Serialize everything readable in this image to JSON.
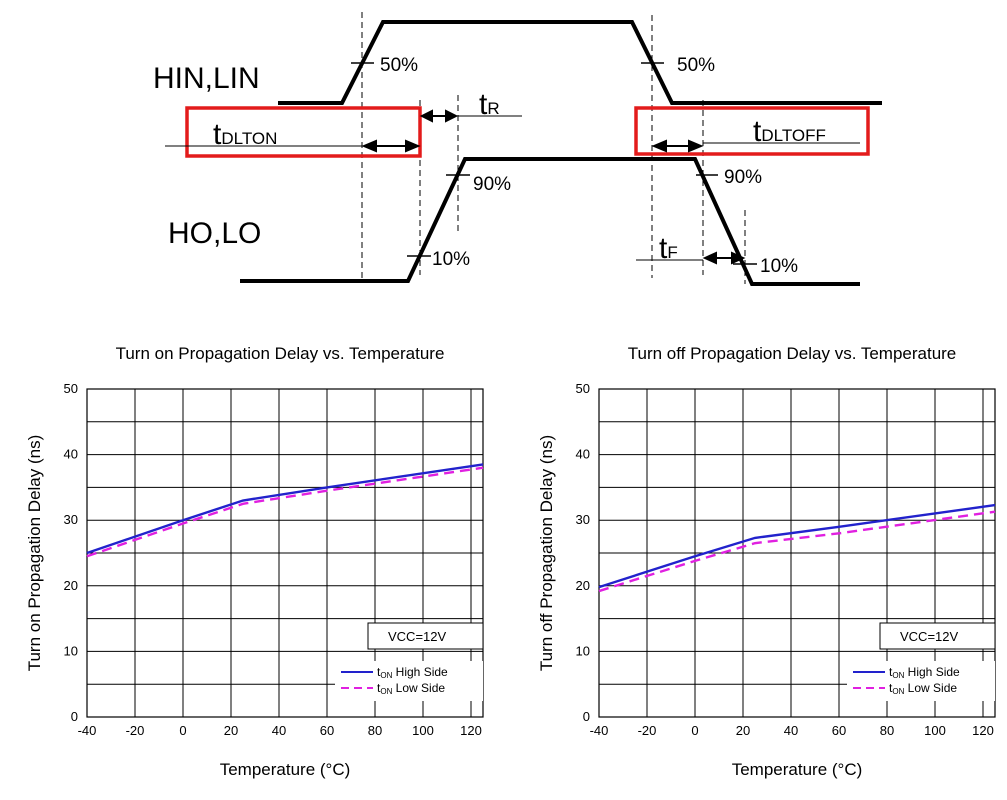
{
  "timing": {
    "input_label": "HIN,LIN",
    "output_label": "HO,LO",
    "p50": "50%",
    "p90": "90%",
    "p10": "10%",
    "t_main": "t",
    "t_r_sub": "R",
    "t_f_sub": "F",
    "t_dlton_sub": "DLTON",
    "t_dltoff_sub": "DLTOFF",
    "highlight_color": "#e31b1b"
  },
  "chart_data": [
    {
      "type": "line",
      "title": "Turn on Propagation Delay vs. Temperature",
      "xlabel": "Temperature (°C)",
      "ylabel": "Turn on Propagation Delay (ns)",
      "xlim": [
        -40,
        125
      ],
      "ylim": [
        0,
        50
      ],
      "x_ticks": [
        "-40",
        "-20",
        "0",
        "20",
        "40",
        "60",
        "80",
        "100",
        "120"
      ],
      "y_ticks": [
        "0",
        "10",
        "20",
        "30",
        "40",
        "50"
      ],
      "annotation": "VCC=12V",
      "grid": true,
      "legend_position": "bottom-right",
      "series": [
        {
          "name": "tON High Side",
          "legend_main": "t",
          "legend_sub": "ON",
          "legend_text": " High Side",
          "color": "#2222cc",
          "style": "solid",
          "x": [
            -40,
            0,
            25,
            60,
            125
          ],
          "y": [
            25,
            30,
            33,
            35,
            38.5
          ]
        },
        {
          "name": "tON Low Side",
          "legend_main": "t",
          "legend_sub": "ON",
          "legend_text": " Low Side",
          "color": "#e020e0",
          "style": "dashed",
          "x": [
            -40,
            0,
            25,
            60,
            125
          ],
          "y": [
            24.5,
            29.5,
            32.5,
            34.5,
            38
          ]
        }
      ]
    },
    {
      "type": "line",
      "title": "Turn off Propagation Delay vs. Temperature",
      "xlabel": "Temperature (°C)",
      "ylabel": "Turn off Propagation Delay (ns)",
      "xlim": [
        -40,
        125
      ],
      "ylim": [
        0,
        50
      ],
      "x_ticks": [
        "-40",
        "-20",
        "0",
        "20",
        "40",
        "60",
        "80",
        "100",
        "120"
      ],
      "y_ticks": [
        "0",
        "10",
        "20",
        "30",
        "40",
        "50"
      ],
      "annotation": "VCC=12V",
      "grid": true,
      "legend_position": "bottom-right",
      "series": [
        {
          "name": "tON High Side",
          "legend_main": "t",
          "legend_sub": "ON",
          "legend_text": " High Side",
          "color": "#2222cc",
          "style": "solid",
          "x": [
            -40,
            0,
            25,
            60,
            125
          ],
          "y": [
            19.8,
            24.5,
            27.3,
            29,
            32.3
          ]
        },
        {
          "name": "tON Low Side",
          "legend_main": "t",
          "legend_sub": "ON",
          "legend_text": " Low Side",
          "color": "#e020e0",
          "style": "dashed",
          "x": [
            -40,
            0,
            25,
            60,
            125
          ],
          "y": [
            19.2,
            23.8,
            26.5,
            28,
            31.3
          ]
        }
      ]
    }
  ]
}
